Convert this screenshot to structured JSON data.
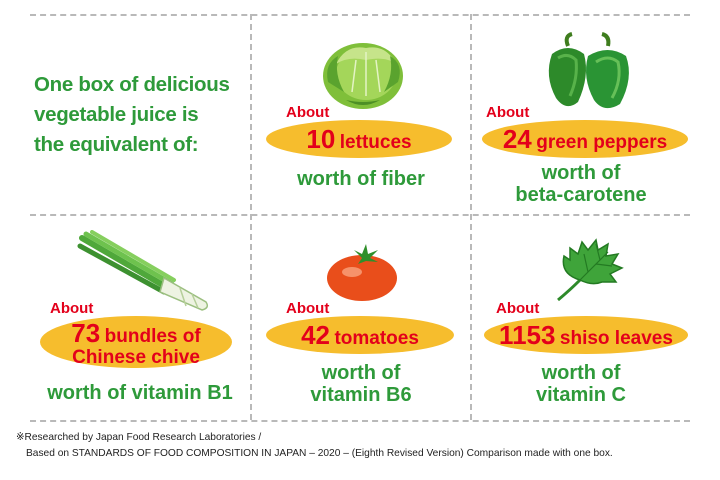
{
  "intro": {
    "line1": "One box of delicious",
    "line2": "vegetable juice is",
    "line3": "the equivalent of:"
  },
  "items": [
    {
      "about": "About",
      "number": "10",
      "unit": "lettuces",
      "worth_line1": "worth of fiber",
      "worth_line2": "",
      "icon": "lettuce-icon"
    },
    {
      "about": "About",
      "number": "24",
      "unit": "green peppers",
      "worth_line1": "worth of",
      "worth_line2": "beta-carotene",
      "icon": "green-pepper-icon"
    },
    {
      "about": "About",
      "number": "73",
      "unit": "bundles of",
      "unit_line2": "Chinese chive",
      "worth_line1": "worth of vitamin B1",
      "worth_line2": "",
      "icon": "chinese-chive-icon"
    },
    {
      "about": "About",
      "number": "42",
      "unit": "tomatoes",
      "worth_line1": "worth of",
      "worth_line2": "vitamin B6",
      "icon": "tomato-icon"
    },
    {
      "about": "About",
      "number": "1153",
      "unit": "shiso leaves",
      "worth_line1": "worth of",
      "worth_line2": "vitamin C",
      "icon": "shiso-leaf-icon"
    }
  ],
  "footnote": {
    "line1": "※Researched by Japan Food Research Laboratories /",
    "line2": "Based on STANDARDS OF FOOD COMPOSITION IN JAPAN – 2020 – (Eighth Revised Version) Comparison made with one box."
  },
  "colors": {
    "green_text": "#2e9a3a",
    "red_text": "#e3001b",
    "highlight": "#f6bd2d",
    "divider": "#b9b9b9"
  }
}
